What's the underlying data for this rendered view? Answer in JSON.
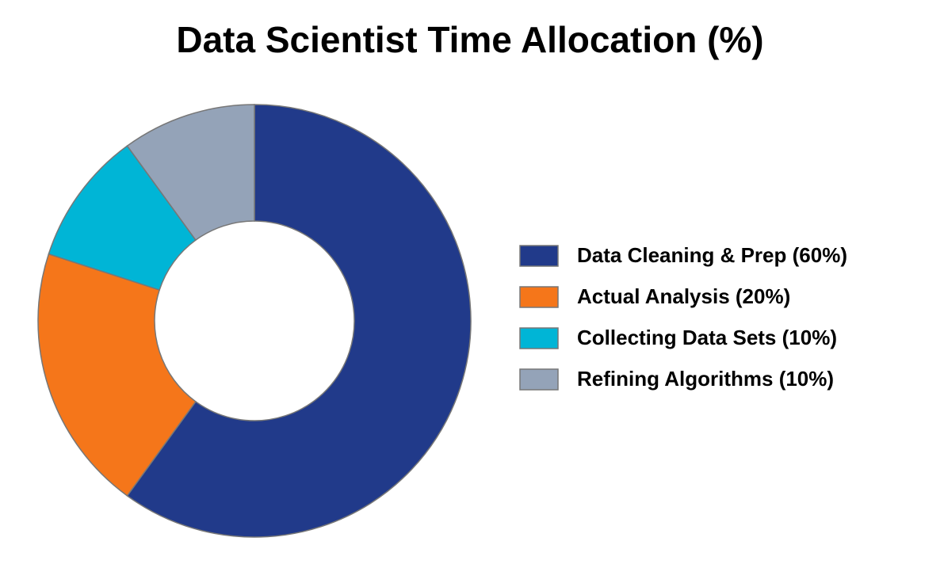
{
  "chart_data": {
    "type": "donut",
    "title": "Data Scientist Time Allocation (%)",
    "categories": [
      "Data Cleaning & Prep (60%)",
      "Actual Analysis (20%)",
      "Collecting Data Sets (10%)",
      "Refining Algorithms (10%)"
    ],
    "values": [
      60,
      20,
      10,
      10
    ],
    "colors": [
      "#213a8a",
      "#f5761a",
      "#00b5d6",
      "#94a3b8"
    ],
    "legend": "right"
  }
}
